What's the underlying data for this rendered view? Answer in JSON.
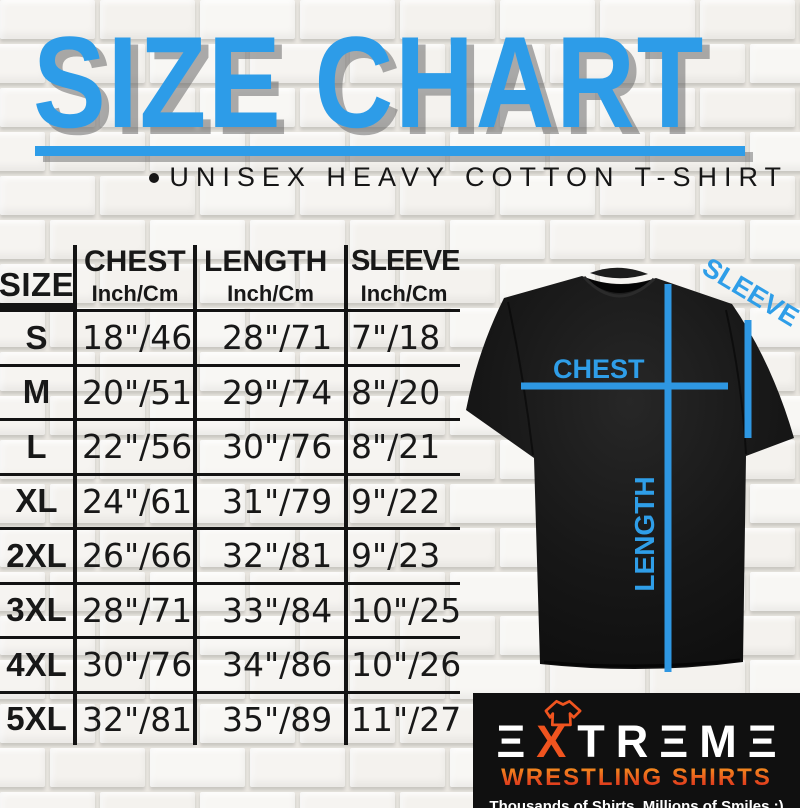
{
  "title": "SIZE CHART",
  "subtitle": "UNISEX HEAVY COTTON T-SHIRT",
  "table": {
    "size_header": "SIZE",
    "columns": [
      {
        "label": "CHEST",
        "unit": "Inch/Cm"
      },
      {
        "label": "LENGTH",
        "unit": "Inch/Cm"
      },
      {
        "label": "SLEEVE",
        "unit": "Inch/Cm"
      }
    ],
    "rows": [
      {
        "size": "S",
        "chest": "18\"/46",
        "length": "28\"/71",
        "sleeve": "7\"/18"
      },
      {
        "size": "M",
        "chest": "20\"/51",
        "length": "29\"/74",
        "sleeve": "8\"/20"
      },
      {
        "size": "L",
        "chest": "22\"/56",
        "length": "30\"/76",
        "sleeve": "8\"/21"
      },
      {
        "size": "XL",
        "chest": "24\"/61",
        "length": "31\"/79",
        "sleeve": "9\"/22"
      },
      {
        "size": "2XL",
        "chest": "26\"/66",
        "length": "32\"/81",
        "sleeve": "9\"/23"
      },
      {
        "size": "3XL",
        "chest": "28\"/71",
        "length": "33\"/84",
        "sleeve": "10\"/25"
      },
      {
        "size": "4XL",
        "chest": "30\"/76",
        "length": "34\"/86",
        "sleeve": "10\"/26"
      },
      {
        "size": "5XL",
        "chest": "32\"/81",
        "length": "35\"/89",
        "sleeve": "11\"/27"
      }
    ]
  },
  "diagram": {
    "chest_label": "CHEST",
    "length_label": "LENGTH",
    "sleeve_label": "SLEEVE",
    "line_color": "#2e97e2"
  },
  "logo": {
    "brand_full": "EXTREME",
    "brand_seg1": "Ξ",
    "brand_x": "X",
    "brand_seg2": "TRΞMΞ",
    "line2": "WRESTLING SHIRTS",
    "tagline": "Thousands of Shirts. Millions of Smiles :)",
    "orange": "#f0541f"
  },
  "colors": {
    "accent_blue": "#2d9ce8",
    "shadow_gray": "#696969",
    "logo_bg": "#101010"
  },
  "chart_data": {
    "type": "table",
    "title": "SIZE CHART",
    "subtitle": "UNISEX HEAVY COTTON T-SHIRT",
    "columns": [
      "SIZE",
      "CHEST Inch/Cm",
      "LENGTH Inch/Cm",
      "SLEEVE Inch/Cm"
    ],
    "rows": [
      [
        "S",
        "18\"/46",
        "28\"/71",
        "7\"/18"
      ],
      [
        "M",
        "20\"/51",
        "29\"/74",
        "8\"/20"
      ],
      [
        "L",
        "22\"/56",
        "30\"/76",
        "8\"/21"
      ],
      [
        "XL",
        "24\"/61",
        "31\"/79",
        "9\"/22"
      ],
      [
        "2XL",
        "26\"/66",
        "32\"/81",
        "9\"/23"
      ],
      [
        "3XL",
        "28\"/71",
        "33\"/84",
        "10\"/25"
      ],
      [
        "4XL",
        "30\"/76",
        "34\"/86",
        "10\"/26"
      ],
      [
        "5XL",
        "32\"/81",
        "35\"/89",
        "11\"/27"
      ]
    ]
  }
}
